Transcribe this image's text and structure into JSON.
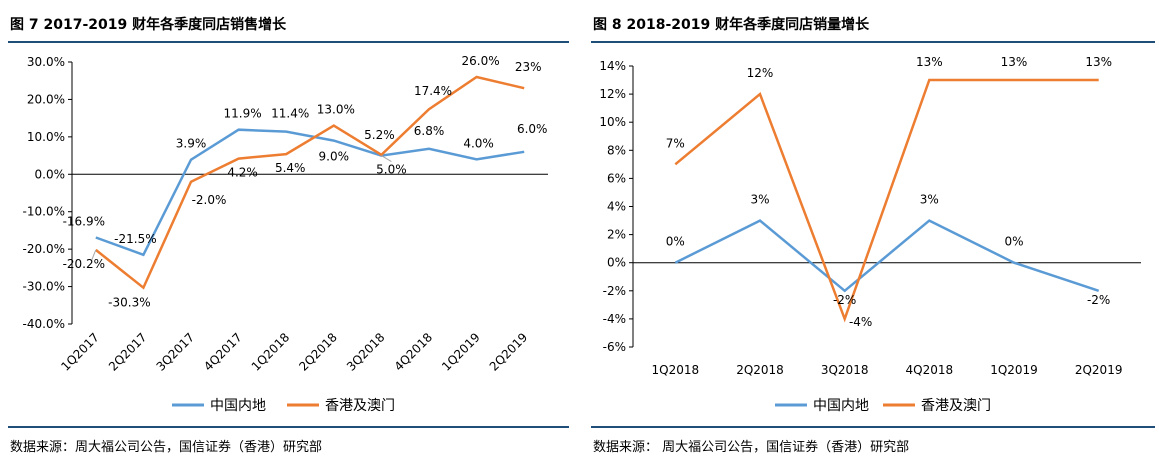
{
  "colors": {
    "mainland": "#5b9bd5",
    "hkmacau": "#ed7d31",
    "axis": "#000000",
    "rule": "#1f4e79"
  },
  "chart_data": [
    {
      "type": "line",
      "title": "图 7   2017-2019 财年各季度同店销售增长",
      "source": "数据来源：周大福公司公告，国信证券（香港）研究部",
      "categories": [
        "1Q2017",
        "2Q2017",
        "3Q2017",
        "4Q2017",
        "1Q2018",
        "2Q2018",
        "3Q2018",
        "4Q2018",
        "1Q2019",
        "2Q2019"
      ],
      "ylim": [
        -40,
        30
      ],
      "yticks": [
        30,
        20,
        10,
        0,
        -10,
        -20,
        -30,
        -40
      ],
      "ytick_labels": [
        "30.0%",
        "20.0%",
        "10.0%",
        "0.0%",
        "-10.0%",
        "-20.0%",
        "-30.0%",
        "-40.0%"
      ],
      "series": [
        {
          "name": "中国内地",
          "values": [
            -16.9,
            -21.5,
            3.9,
            11.9,
            11.4,
            9.0,
            5.0,
            6.8,
            4.0,
            6.0
          ],
          "labels": [
            "-16.9%",
            "-21.5%",
            "3.9%",
            "11.9%",
            "11.4%",
            "9.0%",
            "5.0%",
            "6.8%",
            "4.0%",
            "6.0%"
          ]
        },
        {
          "name": "香港及澳门",
          "values": [
            -20.2,
            -30.3,
            -2.0,
            4.2,
            5.4,
            13.0,
            5.2,
            17.4,
            26.0,
            23.0
          ],
          "labels": [
            "-20.2%",
            "-30.3%",
            "-2.0%",
            "4.2%",
            "5.4%",
            "13.0%",
            "5.2%",
            "17.4%",
            "26.0%",
            "23%"
          ]
        }
      ],
      "legend": "bottom-center"
    },
    {
      "type": "line",
      "title": "图 8   2018-2019 财年各季度同店销量增长",
      "source": "数据来源： 周大福公司公告，国信证券（香港）研究部",
      "categories": [
        "1Q2018",
        "2Q2018",
        "3Q2018",
        "4Q2018",
        "1Q2019",
        "2Q2019"
      ],
      "ylim": [
        -6,
        14
      ],
      "yticks": [
        14,
        12,
        10,
        8,
        6,
        4,
        2,
        0,
        -2,
        -4,
        -6
      ],
      "ytick_labels": [
        "14%",
        "12%",
        "10%",
        "8%",
        "6%",
        "4%",
        "2%",
        "0%",
        "-2%",
        "-4%",
        "-6%"
      ],
      "series": [
        {
          "name": "中国内地",
          "values": [
            0,
            3,
            -2,
            3,
            0,
            -2
          ],
          "labels": [
            "0%",
            "3%",
            "-2%",
            "3%",
            "0%",
            "-2%"
          ]
        },
        {
          "name": "香港及澳门",
          "values": [
            7,
            12,
            -4,
            13,
            13,
            13
          ],
          "labels": [
            "7%",
            "12%",
            "-4%",
            "13%",
            "13%",
            "13%"
          ]
        }
      ],
      "legend": "bottom-center"
    }
  ]
}
